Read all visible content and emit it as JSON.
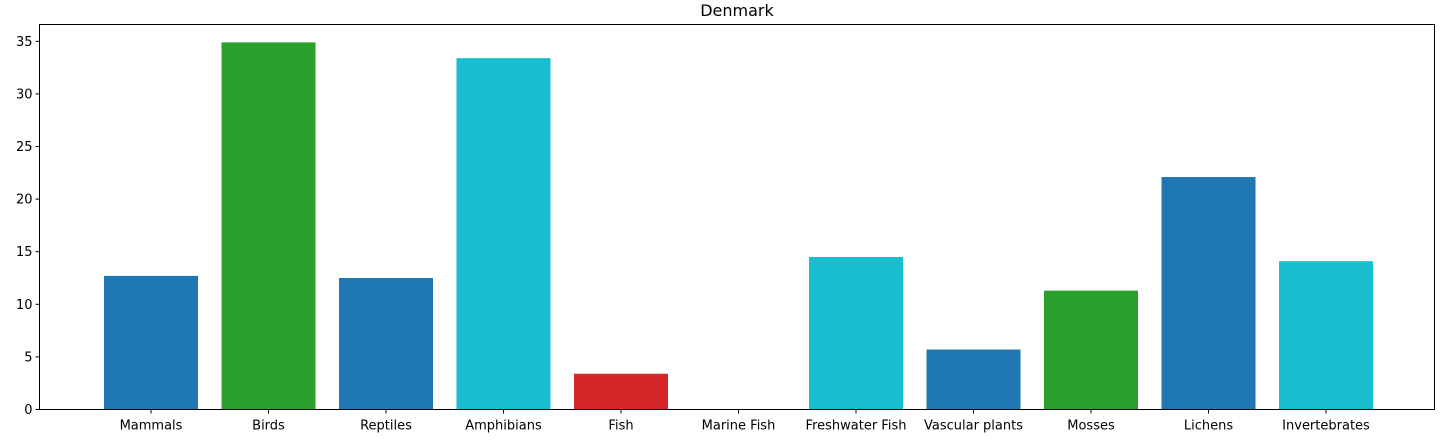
{
  "chart_data": {
    "type": "bar",
    "title": "Denmark",
    "xlabel": "",
    "ylabel": "",
    "categories": [
      "Mammals",
      "Birds",
      "Reptiles",
      "Amphibians",
      "Fish",
      "Marine Fish",
      "Freshwater Fish",
      "Vascular plants",
      "Mosses",
      "Lichens",
      "Invertebrates"
    ],
    "values": [
      12.7,
      34.9,
      12.5,
      33.4,
      3.4,
      0,
      14.5,
      5.7,
      11.3,
      22.1,
      14.1
    ],
    "bar_colors": [
      "#1f77b4",
      "#2ca02c",
      "#1f77b4",
      "#17becf",
      "#d62728",
      "#1f77b4",
      "#17becf",
      "#1f77b4",
      "#2ca02c",
      "#1f77b4",
      "#17becf"
    ],
    "ylim": [
      0,
      36.6
    ],
    "yticks": [
      0,
      5,
      10,
      15,
      20,
      25,
      30,
      35
    ],
    "grid": false,
    "legend": "none"
  }
}
